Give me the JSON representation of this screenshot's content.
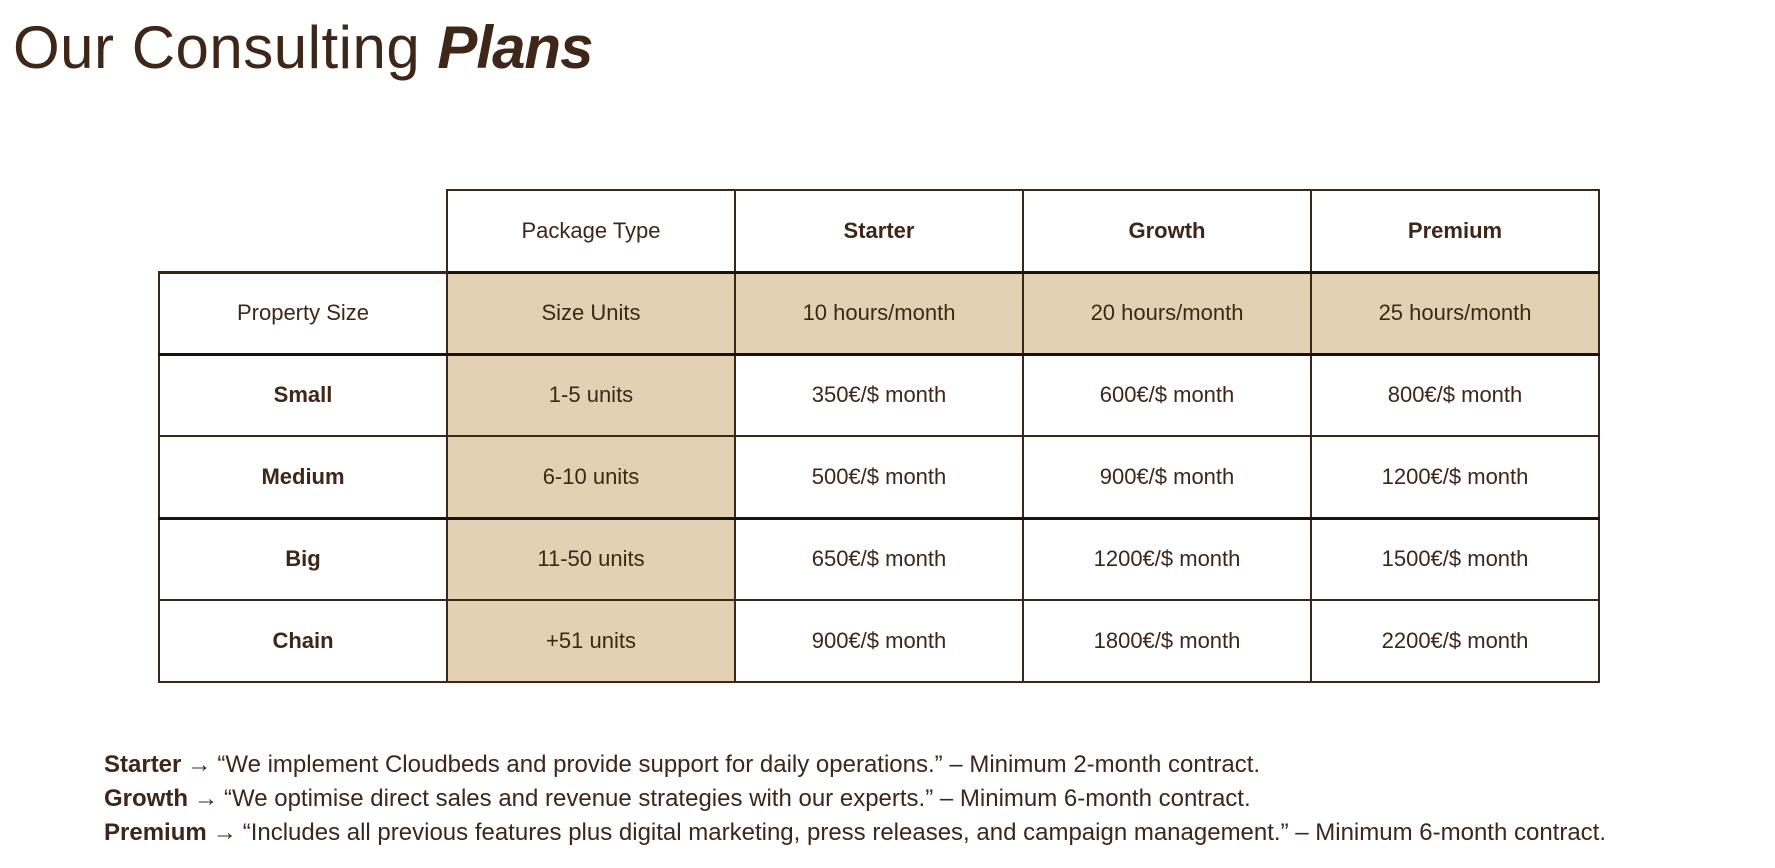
{
  "title": {
    "regular": "Our Consulting ",
    "emphasis": "Plans"
  },
  "colors": {
    "text": "#3e2618",
    "highlight": "#e2d1b3",
    "border": "#3e2618"
  },
  "table": {
    "header": {
      "package_type": "Package Type",
      "plans": [
        "Starter",
        "Growth",
        "Premium"
      ]
    },
    "property_row": {
      "label": "Property Size",
      "units_header": "Size Units",
      "hours": [
        "10 hours/month",
        "20 hours/month",
        "25 hours/month"
      ]
    },
    "rows": [
      {
        "size": "Small",
        "units": "1-5 units",
        "prices": [
          "350€/$ month",
          "600€/$ month",
          "800€/$ month"
        ]
      },
      {
        "size": "Medium",
        "units": "6-10 units",
        "prices": [
          "500€/$ month",
          "900€/$ month",
          "1200€/$ month"
        ]
      },
      {
        "size": "Big",
        "units": "11-50 units",
        "prices": [
          "650€/$ month",
          "1200€/$ month",
          "1500€/$ month"
        ]
      },
      {
        "size": "Chain",
        "units": "+51 units",
        "prices": [
          "900€/$ month",
          "1800€/$ month",
          "2200€/$ month"
        ]
      }
    ]
  },
  "notes": [
    {
      "plan": "Starter",
      "arrow": "→",
      "text": "“We implement Cloudbeds and provide support for daily operations.” – Minimum 2-month contract."
    },
    {
      "plan": "Growth",
      "arrow": "→",
      "text": "“We optimise direct sales and revenue strategies with our experts.” – Minimum 6-month contract."
    },
    {
      "plan": "Premium",
      "arrow": "→",
      "text": "“Includes all previous features plus digital marketing, press releases, and campaign management.” – Minimum 6-month contract."
    }
  ]
}
